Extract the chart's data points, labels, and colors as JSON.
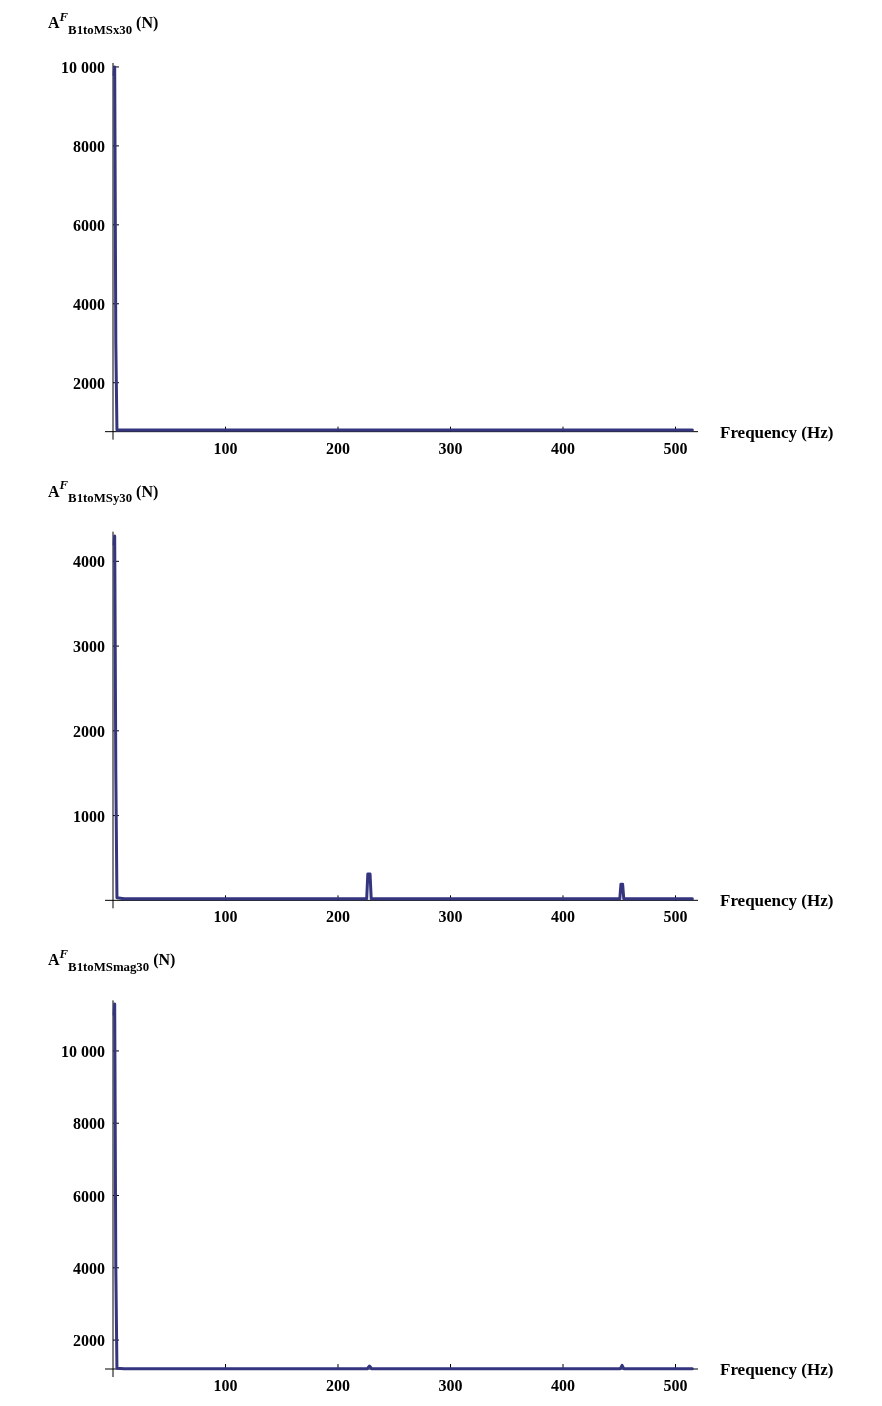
{
  "chart_data": [
    {
      "type": "line",
      "ylabel": "A$^{F}$$_{B1toMSx30}$ (N)",
      "xlabel": "Frequency (Hz)",
      "xlim": [
        0,
        520
      ],
      "ylim": [
        760,
        10100
      ],
      "xticks": [
        100,
        200,
        300,
        400,
        500
      ],
      "yticks": [
        2000,
        4000,
        6000,
        8000,
        {
          "value": 10000,
          "label": "10 000"
        }
      ],
      "marker": "none",
      "line_style": "solid",
      "series": [
        {
          "color": "#35357f",
          "x": [
            1,
            1.5,
            2.5,
            3.5,
            10,
            50,
            100,
            200,
            226,
            228,
            300,
            400,
            452,
            500,
            515
          ],
          "values": [
            9800,
            10000,
            3000,
            800,
            800,
            800,
            800,
            800,
            800,
            800,
            800,
            800,
            800,
            800,
            800
          ]
        }
      ]
    },
    {
      "type": "line",
      "ylabel": "A$^{F}$$_{B1toMSy30}$ (N)",
      "xlabel": "Frequency (Hz)",
      "xlim": [
        0,
        520
      ],
      "ylim": [
        0,
        4350
      ],
      "xticks": [
        100,
        200,
        300,
        400,
        500
      ],
      "yticks": [
        1000,
        2000,
        3000,
        4000
      ],
      "marker": "none",
      "line_style": "solid",
      "series": [
        {
          "color": "#35357f",
          "x": [
            1,
            1.5,
            2.5,
            3.5,
            10,
            100,
            200,
            225.5,
            226.5,
            228.5,
            229.5,
            300,
            400,
            450.5,
            451.5,
            453,
            454,
            500,
            515
          ],
          "values": [
            4200,
            4300,
            1500,
            30,
            20,
            20,
            20,
            20,
            310,
            310,
            20,
            20,
            20,
            20,
            190,
            190,
            20,
            20,
            20
          ]
        }
      ]
    },
    {
      "type": "line",
      "ylabel": "A$^{F}$$_{B1toMSmag30}$ (N)",
      "xlabel": "Frequency (Hz)",
      "xlim": [
        0,
        520
      ],
      "ylim": [
        1200,
        11400
      ],
      "xticks": [
        100,
        200,
        300,
        400,
        500
      ],
      "yticks": [
        2000,
        4000,
        6000,
        8000,
        {
          "value": 10000,
          "label": "10 000"
        }
      ],
      "marker": "none",
      "line_style": "solid",
      "series": [
        {
          "color": "#35357f",
          "x": [
            1,
            1.5,
            2.5,
            3.5,
            10,
            100,
            200,
            226,
            228,
            230,
            300,
            400,
            451,
            452.5,
            454,
            500,
            515
          ],
          "values": [
            11000,
            11300,
            4000,
            1220,
            1210,
            1210,
            1210,
            1210,
            1280,
            1210,
            1210,
            1210,
            1210,
            1300,
            1210,
            1210,
            1210
          ]
        }
      ]
    }
  ]
}
